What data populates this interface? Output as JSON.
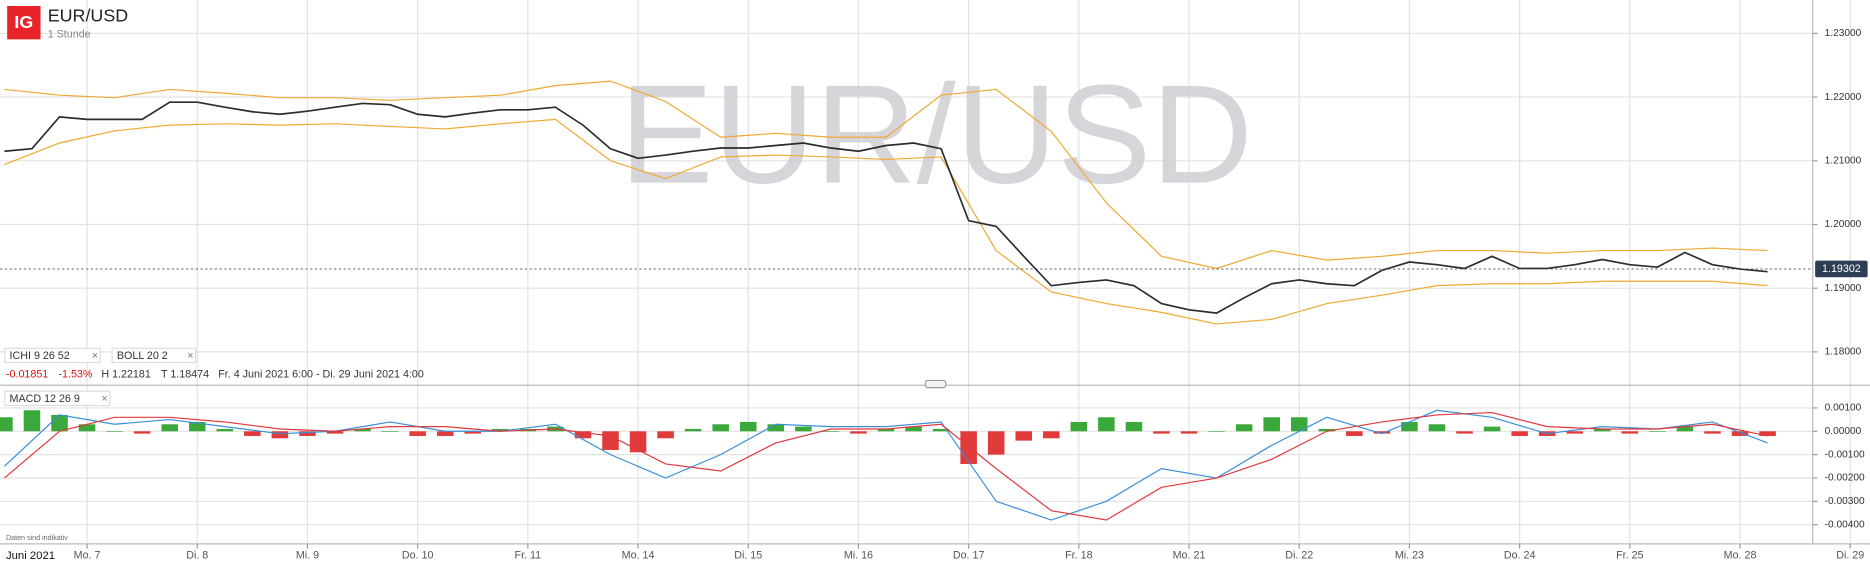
{
  "header": {
    "logo": "IG",
    "symbol": "EUR/USD",
    "interval": "1 Stunde",
    "watermark": "EUR/USD",
    "indicators": [
      "ICHI 9 26 52",
      "BOLL 20 2"
    ],
    "change": "-0.01851",
    "change_percent": "-1.53%",
    "high": "H 1.22181",
    "low": "T 1.18474",
    "range": "Fr. 4 Juni 2021 6:00 - Di. 29 Juni 2021 4:00",
    "macd_label": "MACD 12 26 9",
    "disclaimer": "Daten sind indikativ",
    "month_label": "Juni 2021"
  },
  "chart_data": [
    {
      "type": "line",
      "last_price": 1.19302,
      "ylim": [
        1.17533,
        1.23524
      ],
      "xlim": [
        -0.79,
        15.66
      ],
      "yticks": [
        {
          "value": 1.23,
          "label": "1.23000"
        },
        {
          "value": 1.22,
          "label": "1.22000"
        },
        {
          "value": 1.21,
          "label": "1.21000"
        },
        {
          "value": 1.2,
          "label": "1.20000"
        },
        {
          "value": 1.19,
          "label": "1.19000"
        },
        {
          "value": 1.18,
          "label": "1.18000"
        }
      ],
      "grid": true,
      "series": [
        {
          "name": "BOLL upper",
          "color": "#f0a830",
          "x": [
            -0.75,
            -0.25,
            0.25,
            0.75,
            1.25,
            1.75,
            2.25,
            2.75,
            3.25,
            3.75,
            4.25,
            4.75,
            5.25,
            5.75,
            6.25,
            6.75,
            7.25,
            7.75,
            8.25,
            8.75,
            9.25,
            9.75,
            10.25,
            10.75,
            11.25,
            11.75,
            12.25,
            12.75,
            13.25,
            13.75,
            14.25,
            14.75,
            15.25
          ],
          "values": [
            1.2212,
            1.2203,
            1.2199,
            1.2212,
            1.2206,
            1.2199,
            1.2199,
            1.2195,
            1.2199,
            1.2203,
            1.2218,
            1.2225,
            1.2193,
            1.2137,
            1.2143,
            1.2137,
            1.2137,
            1.2203,
            1.2212,
            1.2146,
            1.2034,
            1.195,
            1.1931,
            1.1959,
            1.1944,
            1.195,
            1.1959,
            1.1959,
            1.1955,
            1.1959,
            1.1959,
            1.1963,
            1.1959
          ]
        },
        {
          "name": "BOLL lower",
          "color": "#f0a830",
          "x": [
            -0.75,
            -0.25,
            0.25,
            0.75,
            1.25,
            1.75,
            2.25,
            2.75,
            3.25,
            3.75,
            4.25,
            4.75,
            5.25,
            5.75,
            6.25,
            6.75,
            7.25,
            7.75,
            8.25,
            8.75,
            9.25,
            9.75,
            10.25,
            10.75,
            11.25,
            11.75,
            12.25,
            12.75,
            13.25,
            13.75,
            14.25,
            14.75,
            15.25
          ],
          "values": [
            1.2094,
            1.2128,
            1.2147,
            1.2156,
            1.2158,
            1.2156,
            1.2158,
            1.2154,
            1.215,
            1.2158,
            1.2165,
            1.21,
            1.2072,
            1.2106,
            1.2109,
            1.2106,
            1.2102,
            1.2106,
            1.1959,
            1.1894,
            1.1876,
            1.1862,
            1.1844,
            1.1851,
            1.1876,
            1.1889,
            1.1904,
            1.1907,
            1.1907,
            1.1911,
            1.1911,
            1.1911,
            1.1904
          ]
        },
        {
          "name": "EUR/USD",
          "color": "#2c2c2c",
          "x": [
            -0.75,
            -0.5,
            -0.25,
            0,
            0.25,
            0.5,
            0.75,
            1,
            1.25,
            1.5,
            1.75,
            2,
            2.25,
            2.5,
            2.75,
            3,
            3.25,
            3.5,
            3.75,
            4,
            4.25,
            4.5,
            4.75,
            5,
            5.25,
            5.5,
            5.75,
            6,
            6.25,
            6.5,
            6.75,
            7,
            7.25,
            7.5,
            7.75,
            8,
            8.25,
            8.5,
            8.75,
            9,
            9.25,
            9.5,
            9.75,
            10,
            10.25,
            10.5,
            10.75,
            11,
            11.25,
            11.5,
            11.75,
            12,
            12.25,
            12.5,
            12.75,
            13,
            13.25,
            13.5,
            13.75,
            14,
            14.25,
            14.5,
            14.75,
            15,
            15.25
          ],
          "values": [
            1.2115,
            1.2119,
            1.2169,
            1.2165,
            1.2165,
            1.2165,
            1.2192,
            1.2192,
            1.2184,
            1.2177,
            1.2173,
            1.2178,
            1.2184,
            1.219,
            1.2188,
            1.2173,
            1.2169,
            1.2175,
            1.218,
            1.218,
            1.2184,
            1.2156,
            1.2119,
            1.2104,
            1.2109,
            1.2115,
            1.212,
            1.212,
            1.2124,
            1.2128,
            1.212,
            1.2115,
            1.2124,
            1.2128,
            1.2119,
            1.2006,
            1.1997,
            1.195,
            1.1904,
            1.1909,
            1.1913,
            1.1904,
            1.1876,
            1.1866,
            1.1861,
            1.1885,
            1.1907,
            1.1913,
            1.1907,
            1.1904,
            1.1928,
            1.1941,
            1.1937,
            1.1931,
            1.195,
            1.1931,
            1.1931,
            1.1937,
            1.1945,
            1.1937,
            1.1933,
            1.1956,
            1.1937,
            1.193,
            1.1926
          ]
        }
      ]
    },
    {
      "type": "macd",
      "ylim": [
        -0.00477,
        0.00187
      ],
      "xlim": [
        -0.79,
        15.66
      ],
      "yticks": [
        {
          "value": 0.001,
          "label": "0.00100"
        },
        {
          "value": 0,
          "label": "0.00000"
        },
        {
          "value": -0.001,
          "label": "-0.00100"
        },
        {
          "value": -0.002,
          "label": "-0.00200"
        },
        {
          "value": -0.003,
          "label": "-0.00300"
        },
        {
          "value": -0.004,
          "label": "-0.00400"
        }
      ],
      "xticks": [
        {
          "value": 0,
          "label": "Mo. 7"
        },
        {
          "value": 1,
          "label": "Di. 8"
        },
        {
          "value": 2,
          "label": "Mi. 9"
        },
        {
          "value": 3,
          "label": "Do. 10"
        },
        {
          "value": 4,
          "label": "Fr. 11"
        },
        {
          "value": 5,
          "label": "Mo. 14"
        },
        {
          "value": 6,
          "label": "Di. 15"
        },
        {
          "value": 7,
          "label": "Mi. 16"
        },
        {
          "value": 8,
          "label": "Do. 17"
        },
        {
          "value": 9,
          "label": "Fr. 18"
        },
        {
          "value": 10,
          "label": "Mo. 21"
        },
        {
          "value": 11,
          "label": "Di. 22"
        },
        {
          "value": 12,
          "label": "Mi. 23"
        },
        {
          "value": 13,
          "label": "Do. 24"
        },
        {
          "value": 14,
          "label": "Fr. 25"
        },
        {
          "value": 15,
          "label": "Mo. 28"
        },
        {
          "value": 16,
          "label": "Di. 29"
        }
      ],
      "grid": true,
      "positive_color": "#3aa83a",
      "negative_color": "#e03a3a",
      "series": [
        {
          "name": "Histogram",
          "kind": "bar",
          "x": [
            -0.75,
            -0.5,
            -0.25,
            0,
            0.25,
            0.5,
            0.75,
            1,
            1.25,
            1.5,
            1.75,
            2,
            2.25,
            2.5,
            2.75,
            3,
            3.25,
            3.5,
            3.75,
            4,
            4.25,
            4.5,
            4.75,
            5,
            5.25,
            5.5,
            5.75,
            6,
            6.25,
            6.5,
            6.75,
            7,
            7.25,
            7.5,
            7.75,
            8,
            8.25,
            8.5,
            8.75,
            9,
            9.25,
            9.5,
            9.75,
            10,
            10.25,
            10.5,
            10.75,
            11,
            11.25,
            11.5,
            11.75,
            12,
            12.25,
            12.5,
            12.75,
            13,
            13.25,
            13.5,
            13.75,
            14,
            14.25,
            14.5,
            14.75,
            15,
            15.25
          ],
          "values": [
            0.0006,
            0.0009,
            0.0007,
            0.0003,
            0.0,
            -0.0001,
            0.0003,
            0.0004,
            0.0001,
            -0.0002,
            -0.0003,
            -0.0002,
            -0.0001,
            0.0001,
            0.0,
            -0.0002,
            -0.0002,
            -0.0001,
            0.0001,
            0.0001,
            0.0002,
            -0.0003,
            -0.0008,
            -0.0009,
            -0.0003,
            0.0001,
            0.0003,
            0.0004,
            0.0003,
            0.0002,
            0.0,
            -0.0001,
            0.0001,
            0.0002,
            0.0001,
            -0.0014,
            -0.001,
            -0.0004,
            -0.0003,
            0.0004,
            0.0006,
            0.0004,
            -0.0001,
            -0.0001,
            0.0,
            0.0003,
            0.0006,
            0.0006,
            0.0001,
            -0.0002,
            -0.0001,
            0.0004,
            0.0003,
            -0.0001,
            0.0002,
            -0.0002,
            -0.0002,
            -0.0001,
            0.0001,
            -0.0001,
            0.0,
            0.0002,
            -0.0001,
            -0.0002,
            -0.0002
          ]
        },
        {
          "name": "MACD",
          "color": "#3a8fd9",
          "x": [
            -0.75,
            -0.25,
            0.25,
            0.75,
            1.25,
            1.75,
            2.25,
            2.75,
            3.25,
            3.75,
            4.25,
            4.75,
            5.25,
            5.75,
            6.25,
            6.75,
            7.25,
            7.75,
            8.25,
            8.75,
            9.25,
            9.75,
            10.25,
            10.75,
            11.25,
            11.75,
            12.25,
            12.75,
            13.25,
            13.75,
            14.25,
            14.75,
            15.25
          ],
          "values": [
            -0.0015,
            0.0007,
            0.0003,
            0.0005,
            0.0002,
            -0.0001,
            0.0,
            0.0004,
            0.0,
            0.0,
            0.0003,
            -0.001,
            -0.002,
            -0.001,
            0.0003,
            0.0002,
            0.0002,
            0.0004,
            -0.003,
            -0.0038,
            -0.003,
            -0.0016,
            -0.002,
            -0.0006,
            0.0006,
            -0.0001,
            0.0009,
            0.0006,
            -0.0001,
            0.0002,
            0.0001,
            0.0004,
            -0.0005
          ]
        },
        {
          "name": "Signal",
          "color": "#e0393e",
          "x": [
            -0.75,
            -0.25,
            0.25,
            0.75,
            1.25,
            1.75,
            2.25,
            2.75,
            3.25,
            3.75,
            4.25,
            4.75,
            5.25,
            5.75,
            6.25,
            6.75,
            7.25,
            7.75,
            8.25,
            8.75,
            9.25,
            9.75,
            10.25,
            10.75,
            11.25,
            11.75,
            12.25,
            12.75,
            13.25,
            13.75,
            14.25,
            14.75,
            15.25
          ],
          "values": [
            -0.002,
            0.0,
            0.0006,
            0.0006,
            0.0004,
            0.0001,
            0.0,
            0.0002,
            0.0002,
            0.0,
            0.0001,
            -0.0002,
            -0.0014,
            -0.0017,
            -0.0005,
            0.0001,
            0.0001,
            0.0003,
            -0.0016,
            -0.0034,
            -0.0038,
            -0.0024,
            -0.002,
            -0.0012,
            0.0,
            0.0004,
            0.0007,
            0.0008,
            0.0002,
            0.0001,
            0.0001,
            0.0003,
            -0.0002
          ]
        }
      ]
    }
  ]
}
